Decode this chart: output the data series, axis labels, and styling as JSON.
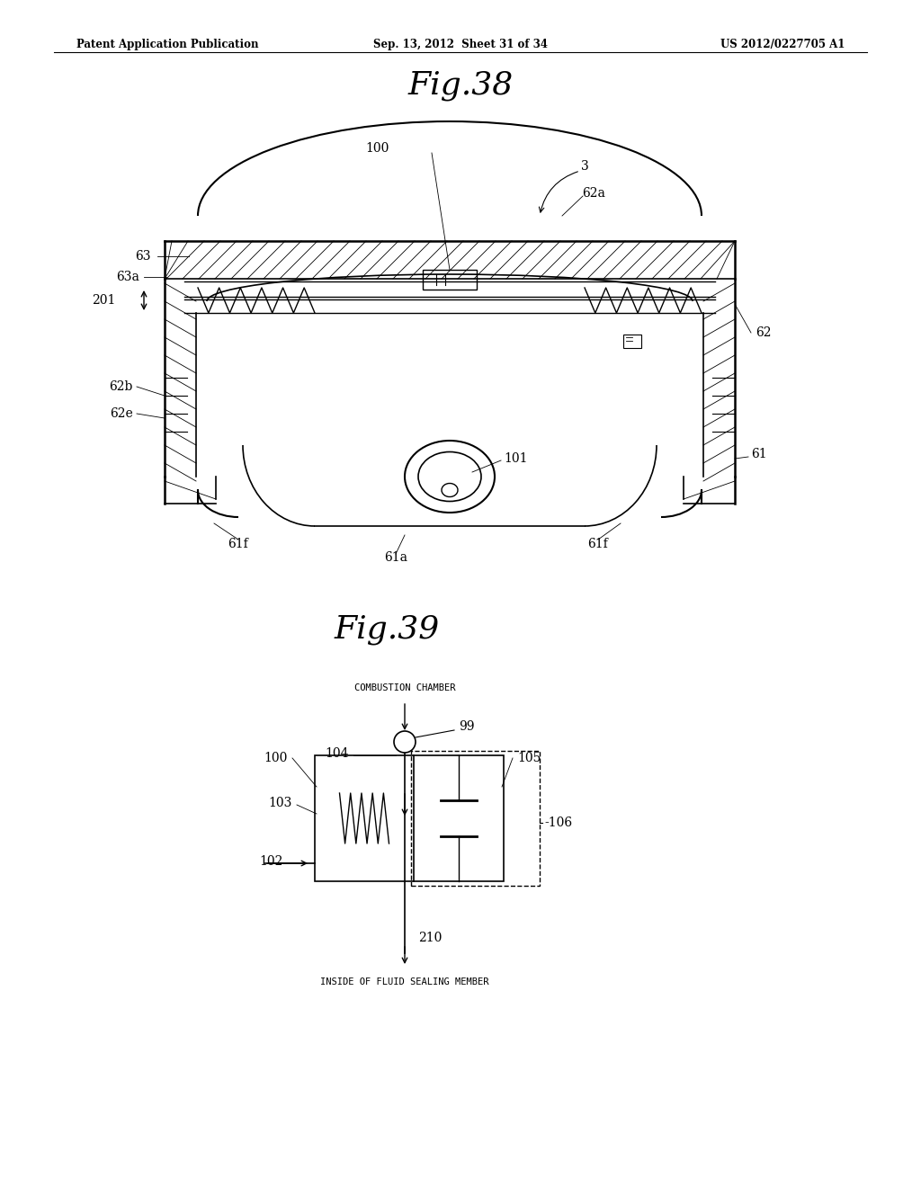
{
  "header_left": "Patent Application Publication",
  "header_mid": "Sep. 13, 2012  Sheet 31 of 34",
  "header_right": "US 2012/0227705 A1",
  "fig38_title": "Fig.38",
  "fig39_title": "Fig.39",
  "bg_color": "#ffffff",
  "line_color": "#000000"
}
